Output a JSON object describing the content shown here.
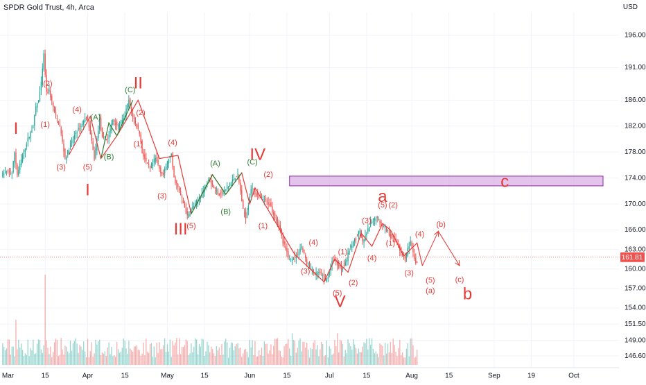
{
  "header": {
    "title": "SPDR Gold Trust, 4h, Arca",
    "currency": "USD"
  },
  "chart_data": {
    "type": "candlestick",
    "ylim": [
      144.8,
      199.5
    ],
    "y_ticks": [
      196.0,
      191.0,
      186.0,
      182.0,
      178.0,
      174.0,
      170.0,
      166.0,
      163.0,
      160.0,
      157.0,
      154.0,
      151.5,
      149.0,
      146.6
    ],
    "x_ticks": [
      {
        "label": "Mar",
        "t": 2.0
      },
      {
        "label": "15",
        "t": 16.0
      },
      {
        "label": "Apr",
        "t": 32.0
      },
      {
        "label": "15",
        "t": 46.0
      },
      {
        "label": "May",
        "t": 62.0
      },
      {
        "label": "15",
        "t": 76.0
      },
      {
        "label": "Jun",
        "t": 93.0
      },
      {
        "label": "15",
        "t": 107.0
      },
      {
        "label": "Jul",
        "t": 123.0
      },
      {
        "label": "15",
        "t": 137.0
      },
      {
        "label": "Aug",
        "t": 154.0
      },
      {
        "label": "15",
        "t": 168.0
      },
      {
        "label": "Sep",
        "t": 185.0
      },
      {
        "label": "19",
        "t": 199.0
      },
      {
        "label": "Oct",
        "t": 215.0
      }
    ],
    "last_price": 161.81,
    "price_path": [
      [
        0,
        174.5
      ],
      [
        2,
        175
      ],
      [
        4,
        174.8
      ],
      [
        5,
        178
      ],
      [
        6,
        174.5
      ],
      [
        8,
        177.5
      ],
      [
        10,
        180
      ],
      [
        12,
        182
      ],
      [
        13,
        185
      ],
      [
        14,
        186
      ],
      [
        15,
        188.5
      ],
      [
        16,
        193
      ],
      [
        17,
        187
      ],
      [
        18,
        187.5
      ],
      [
        20,
        184
      ],
      [
        22,
        182
      ],
      [
        24,
        177
      ],
      [
        26,
        179
      ],
      [
        28,
        181
      ],
      [
        30,
        182
      ],
      [
        32,
        183.5
      ],
      [
        33,
        182
      ],
      [
        35,
        177
      ],
      [
        37,
        183
      ],
      [
        38,
        180
      ],
      [
        40,
        180
      ],
      [
        42,
        183
      ],
      [
        44,
        182
      ],
      [
        46,
        183
      ],
      [
        48,
        186
      ],
      [
        49,
        184
      ],
      [
        51,
        182
      ],
      [
        52,
        181
      ],
      [
        53,
        178
      ],
      [
        55,
        176
      ],
      [
        56,
        175.5
      ],
      [
        58,
        177
      ],
      [
        60,
        175
      ],
      [
        61,
        174.5
      ],
      [
        63,
        177
      ],
      [
        64,
        177.5
      ],
      [
        65,
        174
      ],
      [
        67,
        172
      ],
      [
        69,
        169.5
      ],
      [
        70,
        168
      ],
      [
        72,
        169.5
      ],
      [
        74,
        170.5
      ],
      [
        76,
        172
      ],
      [
        78,
        174
      ],
      [
        80,
        172.5
      ],
      [
        82,
        171.5
      ],
      [
        84,
        172
      ],
      [
        86,
        173
      ],
      [
        88,
        174.2
      ],
      [
        89,
        174.5
      ],
      [
        90,
        172
      ],
      [
        91,
        169
      ],
      [
        92,
        168
      ],
      [
        93,
        170
      ],
      [
        94,
        172.5
      ],
      [
        95,
        172
      ],
      [
        97,
        171
      ],
      [
        99,
        170.5
      ],
      [
        101,
        170
      ],
      [
        103,
        168
      ],
      [
        105,
        166
      ],
      [
        106,
        164
      ],
      [
        108,
        162
      ],
      [
        109,
        161.5
      ],
      [
        111,
        162
      ],
      [
        113,
        163.5
      ],
      [
        115,
        161
      ],
      [
        117,
        160
      ],
      [
        118,
        159
      ],
      [
        119,
        159.5
      ],
      [
        121,
        159
      ],
      [
        122,
        158
      ],
      [
        123,
        159
      ],
      [
        124,
        160.5
      ],
      [
        125,
        161.5
      ],
      [
        126,
        161
      ],
      [
        128,
        160
      ],
      [
        130,
        161.5
      ],
      [
        131,
        163
      ],
      [
        133,
        164.5
      ],
      [
        135,
        166
      ],
      [
        136,
        164
      ],
      [
        138,
        166
      ],
      [
        139,
        167
      ],
      [
        141,
        168
      ],
      [
        142,
        167.5
      ],
      [
        143,
        167
      ],
      [
        145,
        166
      ],
      [
        147,
        165
      ],
      [
        149,
        164
      ],
      [
        150,
        163
      ],
      [
        151,
        162
      ],
      [
        152,
        161.5
      ],
      [
        153,
        163
      ],
      [
        154,
        164
      ],
      [
        155,
        162.5
      ],
      [
        156,
        161
      ]
    ],
    "volume_max": 100,
    "volume_spikes": [
      {
        "t": 16,
        "v": 100
      },
      {
        "t": 5,
        "v": 50
      },
      {
        "t": 109,
        "v": 35
      },
      {
        "t": 126,
        "v": 35
      }
    ],
    "zone": {
      "from_t": 108,
      "to_t": 226,
      "low": 172.8,
      "high": 174.3,
      "color": "#ce93d8"
    },
    "impulse_path": [
      [
        25,
        177.6
      ],
      [
        33,
        183.5
      ],
      [
        37,
        177
      ],
      [
        43,
        180.5
      ],
      [
        51,
        186
      ],
      [
        59,
        177
      ],
      [
        66,
        177.5
      ],
      [
        71,
        168.5
      ],
      [
        79,
        174.5
      ],
      [
        84,
        171.5
      ],
      [
        90,
        174.8
      ],
      [
        93,
        170
      ],
      [
        95,
        172.5
      ],
      [
        110,
        162.2
      ],
      [
        121,
        158
      ],
      [
        125,
        161.5
      ],
      [
        130,
        159.5
      ],
      [
        135,
        165.5
      ],
      [
        139,
        163.5
      ],
      [
        143,
        167
      ],
      [
        146,
        166
      ],
      [
        151,
        162
      ],
      [
        156,
        164
      ],
      [
        158,
        160.5
      ]
    ],
    "wave_paths": [
      {
        "color": "#2e7d32",
        "points": [
          [
            71,
            168.5
          ],
          [
            79,
            174.5
          ],
          [
            84,
            171.5
          ],
          [
            90,
            174.8
          ]
        ]
      },
      {
        "color": "#2e7d32",
        "points": [
          [
            37,
            177
          ],
          [
            40,
            182.5
          ],
          [
            43,
            180.5
          ],
          [
            49,
            186
          ]
        ]
      }
    ],
    "projection": {
      "color": "#e53935",
      "points": [
        [
          158,
          160.5
        ],
        [
          164,
          165.8
        ],
        [
          172,
          160.5
        ]
      ]
    },
    "labels": [
      {
        "text": "I",
        "t": 5,
        "y": 181.5,
        "size": 24,
        "color": "#e53935"
      },
      {
        "text": "II",
        "t": 51,
        "y": 188.5,
        "size": 24,
        "color": "#e53935"
      },
      {
        "text": "I",
        "t": 32,
        "y": 172.0,
        "size": 24,
        "color": "#e53935"
      },
      {
        "text": "III",
        "t": 67,
        "y": 166.0,
        "size": 24,
        "color": "#e53935"
      },
      {
        "text": "IV",
        "t": 96,
        "y": 177.5,
        "size": 24,
        "color": "#e53935"
      },
      {
        "text": "V",
        "t": 127,
        "y": 154.8,
        "size": 24,
        "color": "#e53935"
      },
      {
        "text": "a",
        "t": 143,
        "y": 171.0,
        "size": 24,
        "color": "#e53935"
      },
      {
        "text": "b",
        "t": 175,
        "y": 156.0,
        "size": 24,
        "color": "#e53935"
      },
      {
        "text": "c",
        "t": 189,
        "y": 173.3,
        "size": 24,
        "color": "#e53935"
      },
      {
        "text": "(2)",
        "t": 17,
        "y": 188.5,
        "size": 11,
        "color": "#e53935"
      },
      {
        "text": "(1)",
        "t": 16,
        "y": 182.2,
        "size": 11,
        "color": "#e53935"
      },
      {
        "text": "(3)",
        "t": 22,
        "y": 175.6,
        "size": 11,
        "color": "#e53935"
      },
      {
        "text": "(4)",
        "t": 28,
        "y": 184.5,
        "size": 11,
        "color": "#e53935"
      },
      {
        "text": "(5)",
        "t": 32,
        "y": 175.6,
        "size": 11,
        "color": "#e53935"
      },
      {
        "text": "(A)",
        "t": 35,
        "y": 183.3,
        "size": 11,
        "color": "#2e7d32"
      },
      {
        "text": "(B)",
        "t": 40,
        "y": 177.2,
        "size": 11,
        "color": "#2e7d32"
      },
      {
        "text": "(C)",
        "t": 48,
        "y": 187.5,
        "size": 11,
        "color": "#2e7d32"
      },
      {
        "text": "(2)",
        "t": 52,
        "y": 184.0,
        "size": 11,
        "color": "#e53935"
      },
      {
        "text": "(1)",
        "t": 51,
        "y": 179.2,
        "size": 11,
        "color": "#e53935"
      },
      {
        "text": "(4)",
        "t": 64,
        "y": 179.4,
        "size": 11,
        "color": "#e53935"
      },
      {
        "text": "(3)",
        "t": 60,
        "y": 171.2,
        "size": 11,
        "color": "#e53935"
      },
      {
        "text": "(5)",
        "t": 71,
        "y": 166.6,
        "size": 11,
        "color": "#e53935"
      },
      {
        "text": "(A)",
        "t": 80,
        "y": 176.2,
        "size": 11,
        "color": "#2e7d32"
      },
      {
        "text": "(B)",
        "t": 84,
        "y": 168.8,
        "size": 11,
        "color": "#2e7d32"
      },
      {
        "text": "(C)",
        "t": 94,
        "y": 176.4,
        "size": 11,
        "color": "#2e7d32"
      },
      {
        "text": "(2)",
        "t": 100,
        "y": 174.5,
        "size": 11,
        "color": "#e53935"
      },
      {
        "text": "(1)",
        "t": 98,
        "y": 166.6,
        "size": 11,
        "color": "#e53935"
      },
      {
        "text": "(4)",
        "t": 117,
        "y": 164.0,
        "size": 11,
        "color": "#e53935"
      },
      {
        "text": "(3)",
        "t": 114,
        "y": 159.6,
        "size": 11,
        "color": "#e53935"
      },
      {
        "text": "(5)",
        "t": 126,
        "y": 156.2,
        "size": 11,
        "color": "#e53935"
      },
      {
        "text": "(1)",
        "t": 128,
        "y": 162.6,
        "size": 11,
        "color": "#e53935"
      },
      {
        "text": "(2)",
        "t": 132,
        "y": 157.8,
        "size": 11,
        "color": "#e53935"
      },
      {
        "text": "(3)",
        "t": 137,
        "y": 167.4,
        "size": 11,
        "color": "#e53935"
      },
      {
        "text": "(4)",
        "t": 139,
        "y": 161.6,
        "size": 11,
        "color": "#e53935"
      },
      {
        "text": "(5)",
        "t": 143,
        "y": 169.8,
        "size": 11,
        "color": "#e53935"
      },
      {
        "text": "(2)",
        "t": 147,
        "y": 169.8,
        "size": 11,
        "color": "#e53935"
      },
      {
        "text": "(1)",
        "t": 146,
        "y": 163.9,
        "size": 11,
        "color": "#e53935"
      },
      {
        "text": "(4)",
        "t": 157,
        "y": 165.3,
        "size": 11,
        "color": "#e53935"
      },
      {
        "text": "(3)",
        "t": 153,
        "y": 159.3,
        "size": 11,
        "color": "#e53935"
      },
      {
        "text": "(5)",
        "t": 161,
        "y": 158.2,
        "size": 11,
        "color": "#e53935"
      },
      {
        "text": "(a)",
        "t": 161,
        "y": 156.6,
        "size": 11,
        "color": "#e53935"
      },
      {
        "text": "(b)",
        "t": 165,
        "y": 166.8,
        "size": 11,
        "color": "#e53935"
      },
      {
        "text": "(c)",
        "t": 172,
        "y": 158.3,
        "size": 11,
        "color": "#e53935"
      }
    ],
    "colors": {
      "up": "#26a69a",
      "down": "#ef5350",
      "grid": "#f0f3fa",
      "axis_text": "#131722",
      "last_price_bg": "#ef5350"
    }
  }
}
